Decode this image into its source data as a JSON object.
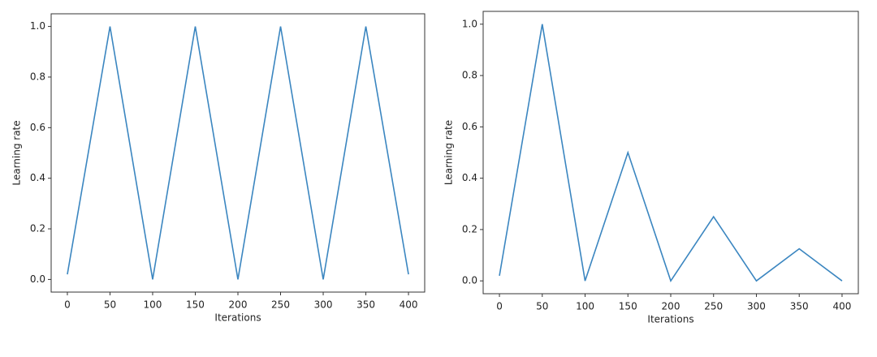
{
  "chart_data": [
    {
      "type": "line",
      "xlabel": "Iterations",
      "ylabel": "Learning rate",
      "x": [
        0,
        50,
        100,
        150,
        200,
        250,
        300,
        350,
        400
      ],
      "series": [
        {
          "color": "#3b86c0",
          "values": [
            0.02,
            1.0,
            0.0,
            1.0,
            0.0,
            1.0,
            0.0,
            1.0,
            0.02
          ]
        }
      ],
      "xlim": [
        -19,
        419
      ],
      "ylim": [
        -0.05,
        1.05
      ],
      "xticks": [
        0,
        50,
        100,
        150,
        200,
        250,
        300,
        350,
        400
      ],
      "yticks": [
        {
          "value": 0,
          "label": "0.0"
        },
        {
          "value": 0.2,
          "label": "0.2"
        },
        {
          "value": 0.4,
          "label": "0.4"
        },
        {
          "value": 0.6,
          "label": "0.6"
        },
        {
          "value": 0.8,
          "label": "0.8"
        },
        {
          "value": 1,
          "label": "1.0"
        }
      ]
    },
    {
      "type": "line",
      "xlabel": "Iterations",
      "ylabel": "Learning rate",
      "x": [
        0,
        50,
        100,
        150,
        200,
        250,
        300,
        350,
        400
      ],
      "series": [
        {
          "color": "#3b86c0",
          "values": [
            0.02,
            1.0,
            0.0,
            0.5,
            0.0,
            0.25,
            0.0,
            0.125,
            0.0
          ]
        }
      ],
      "xlim": [
        -19,
        419
      ],
      "ylim": [
        -0.05,
        1.05
      ],
      "xticks": [
        0,
        50,
        100,
        150,
        200,
        250,
        300,
        350,
        400
      ],
      "yticks": [
        {
          "value": 0,
          "label": "0.0"
        },
        {
          "value": 0.2,
          "label": "0.2"
        },
        {
          "value": 0.4,
          "label": "0.4"
        },
        {
          "value": 0.6,
          "label": "0.6"
        },
        {
          "value": 0.8,
          "label": "0.8"
        },
        {
          "value": 1,
          "label": "1.0"
        }
      ]
    }
  ]
}
